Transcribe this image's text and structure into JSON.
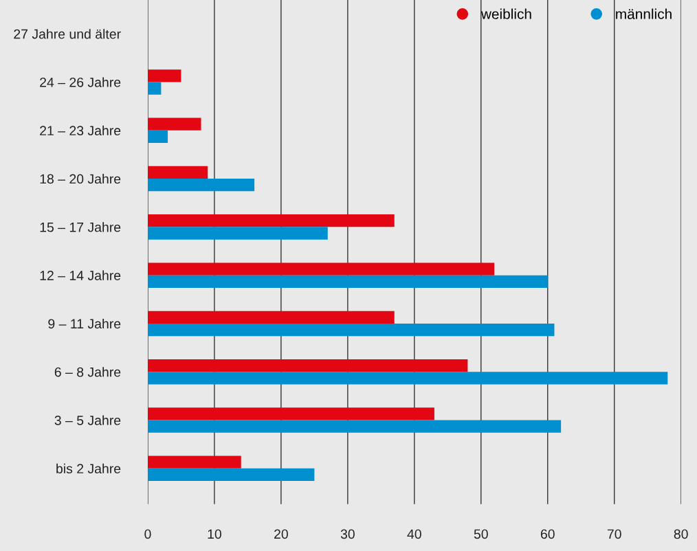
{
  "chart_data": {
    "type": "bar",
    "orientation": "horizontal",
    "categories": [
      "27 Jahre und älter",
      "24 – 26 Jahre",
      "21 – 23 Jahre",
      "18 – 20 Jahre",
      "15 – 17 Jahre",
      "12 – 14 Jahre",
      "9 – 11 Jahre",
      "6 – 8 Jahre",
      "3 – 5 Jahre",
      "bis 2 Jahre"
    ],
    "series": [
      {
        "name": "weiblich",
        "color": "#e30613",
        "values": [
          0,
          5,
          8,
          9,
          37,
          52,
          37,
          48,
          43,
          14
        ]
      },
      {
        "name": "männlich",
        "color": "#0090d0",
        "values": [
          0,
          2,
          3,
          16,
          27,
          60,
          61,
          78,
          62,
          25
        ]
      }
    ],
    "xlim": [
      0,
      80
    ],
    "xticks": [
      0,
      10,
      20,
      30,
      40,
      50,
      60,
      70,
      80
    ],
    "grid": "x",
    "legend": "top right"
  }
}
